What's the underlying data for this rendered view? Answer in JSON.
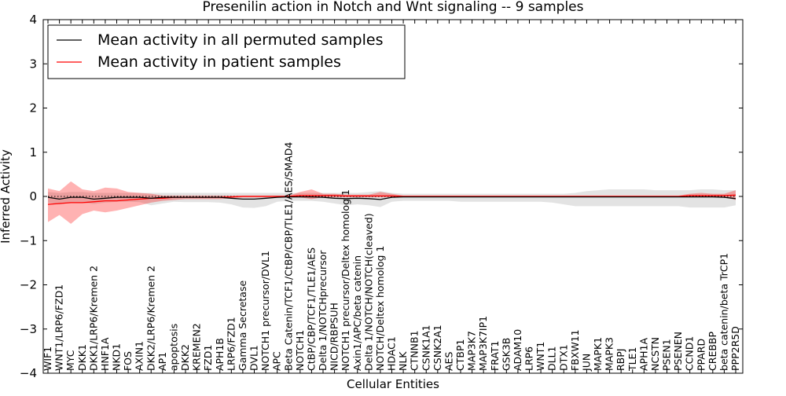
{
  "chart_data": {
    "type": "line",
    "title": "Presenilin action in Notch and Wnt signaling -- 9 samples",
    "xlabel": "Cellular Entities",
    "ylabel": "Inferred Activity",
    "ylim": [
      -4,
      4
    ],
    "yticks": [
      -4,
      -3,
      -2,
      -1,
      0,
      1,
      2,
      3,
      4
    ],
    "ytick_labels": [
      "−4",
      "−3",
      "−2",
      "−1",
      "0",
      "1",
      "2",
      "3",
      "4"
    ],
    "grid": false,
    "legend_position": "top-left",
    "categories": [
      "WIF1",
      "WNT1/LRP6/FZD1",
      "MYC",
      "DKK1",
      "DKK1/LRP6/Kremen 2",
      "HNF1A",
      "NKD1",
      "FOS",
      "AXIN1",
      "DKK2/LRP6/Kremen 2",
      "AP1",
      "apoptosis",
      "DKK2",
      "KREMEN2",
      "FZD1",
      "APH1B",
      "LRP6/FZD1",
      "Gamma Secretase",
      "DVL1",
      "NOTCH1 precursor/DVL1",
      "APC",
      "Beta Catenin/TCF1/CtBP/CBP/TLE1/AES/SMAD4",
      "NOTCH1",
      "CtBP/CBP/TCF1/TLE1/AES",
      "Delta 1/NOTCHprecursor",
      "NICD/RBPSUH",
      "NOTCH1 precursor/Deltex homolog 1",
      "Axin1/APC/beta catenin",
      "Delta 1/NOTCH/NOTCH(cleaved)",
      "NOTCH/Deltex homolog 1",
      "HDAC1",
      "NLK",
      "CTNNB1",
      "CSNK1A1",
      "CSNK2A1",
      "AES",
      "CTBP1",
      "MAP3K7",
      "MAP3K7IP1",
      "FRAT1",
      "GSK3B",
      "ADAM10",
      "LRP6",
      "WNT1",
      "DLL1",
      "DTX1",
      "FBXW11",
      "JUN",
      "MAPK1",
      "MAPK3",
      "RBPJ",
      "TLE1",
      "APH1A",
      "NCSTN",
      "PSEN1",
      "PSENEN",
      "CCND1",
      "PPARD",
      "CREBBP",
      "beta catenin/beta TrCP1",
      "PPP2R5D"
    ],
    "series": [
      {
        "name": "Mean activity in all permuted samples",
        "color": "#000000",
        "values": [
          -0.02,
          -0.06,
          -0.02,
          -0.02,
          -0.06,
          -0.04,
          -0.02,
          -0.02,
          -0.02,
          -0.04,
          -0.02,
          -0.02,
          -0.02,
          -0.02,
          -0.02,
          -0.02,
          -0.04,
          -0.06,
          -0.06,
          -0.04,
          -0.02,
          -0.01,
          -0.01,
          -0.01,
          -0.02,
          -0.04,
          -0.05,
          -0.04,
          -0.05,
          -0.07,
          -0.02,
          -0.01,
          -0.01,
          -0.01,
          -0.01,
          -0.01,
          -0.01,
          -0.01,
          -0.01,
          -0.01,
          -0.01,
          -0.01,
          -0.01,
          -0.01,
          -0.01,
          -0.01,
          -0.01,
          -0.01,
          -0.01,
          -0.01,
          -0.01,
          -0.01,
          -0.01,
          -0.01,
          -0.01,
          -0.01,
          -0.01,
          -0.01,
          -0.01,
          -0.02,
          -0.05
        ],
        "band_low": [
          -0.14,
          -0.18,
          -0.14,
          -0.14,
          -0.17,
          -0.14,
          -0.12,
          -0.12,
          -0.13,
          -0.2,
          -0.16,
          -0.12,
          -0.13,
          -0.13,
          -0.13,
          -0.14,
          -0.18,
          -0.25,
          -0.26,
          -0.22,
          -0.12,
          -0.1,
          -0.1,
          -0.1,
          -0.12,
          -0.16,
          -0.2,
          -0.18,
          -0.2,
          -0.24,
          -0.12,
          -0.1,
          -0.1,
          -0.1,
          -0.1,
          -0.1,
          -0.12,
          -0.12,
          -0.12,
          -0.12,
          -0.12,
          -0.12,
          -0.12,
          -0.12,
          -0.14,
          -0.18,
          -0.22,
          -0.22,
          -0.22,
          -0.22,
          -0.22,
          -0.22,
          -0.22,
          -0.22,
          -0.22,
          -0.22,
          -0.25,
          -0.25,
          -0.25,
          -0.25,
          -0.2
        ],
        "band_high": [
          0.1,
          0.08,
          0.1,
          0.1,
          0.08,
          0.08,
          0.08,
          0.08,
          0.08,
          0.08,
          0.08,
          0.08,
          0.08,
          0.08,
          0.08,
          0.08,
          0.08,
          0.08,
          0.08,
          0.08,
          0.08,
          0.08,
          0.08,
          0.08,
          0.08,
          0.08,
          0.08,
          0.08,
          0.1,
          0.12,
          0.08,
          0.06,
          0.06,
          0.06,
          0.06,
          0.06,
          0.06,
          0.06,
          0.06,
          0.06,
          0.06,
          0.06,
          0.06,
          0.06,
          0.06,
          0.06,
          0.08,
          0.12,
          0.14,
          0.16,
          0.16,
          0.16,
          0.16,
          0.14,
          0.14,
          0.14,
          0.14,
          0.16,
          0.16,
          0.14,
          0.14
        ]
      },
      {
        "name": "Mean activity in patient samples",
        "color": "#ff0000",
        "values": [
          -0.18,
          -0.16,
          -0.14,
          -0.14,
          -0.12,
          -0.1,
          -0.1,
          -0.08,
          -0.06,
          -0.04,
          -0.04,
          -0.02,
          -0.02,
          -0.02,
          -0.02,
          -0.02,
          -0.01,
          0,
          0,
          0,
          0,
          0,
          0.02,
          0.02,
          0.02,
          0.02,
          0.01,
          0.01,
          0.01,
          0.01,
          0.01,
          0,
          0,
          0,
          0,
          0,
          0,
          0,
          0,
          0,
          0,
          0,
          0,
          0,
          0,
          0,
          0,
          0,
          0,
          0,
          0,
          0,
          0,
          0,
          0,
          0,
          0.02,
          0.02,
          0.02,
          0.02,
          0.03
        ],
        "band_low": [
          -0.58,
          -0.42,
          -0.62,
          -0.4,
          -0.32,
          -0.36,
          -0.32,
          -0.26,
          -0.2,
          -0.14,
          -0.1,
          -0.08,
          -0.06,
          -0.06,
          -0.06,
          -0.06,
          -0.04,
          -0.02,
          -0.02,
          -0.02,
          -0.02,
          -0.02,
          -0.02,
          -0.06,
          -0.02,
          -0.02,
          -0.02,
          -0.02,
          -0.02,
          -0.02,
          -0.02,
          -0.01,
          -0.01,
          -0.01,
          -0.01,
          -0.01,
          -0.01,
          -0.01,
          -0.01,
          -0.01,
          -0.01,
          -0.01,
          -0.01,
          -0.01,
          -0.01,
          -0.01,
          -0.01,
          -0.01,
          -0.01,
          -0.01,
          -0.01,
          -0.01,
          -0.01,
          -0.01,
          -0.01,
          -0.01,
          -0.01,
          -0.01,
          -0.01,
          -0.02,
          -0.08
        ],
        "band_high": [
          0.18,
          0.12,
          0.34,
          0.16,
          0.12,
          0.2,
          0.18,
          0.1,
          0.08,
          0.06,
          0.02,
          0.02,
          0.02,
          0.02,
          0.02,
          0.02,
          0.02,
          0.02,
          0.02,
          0.02,
          0.02,
          0.02,
          0.1,
          0.16,
          0.06,
          0.06,
          0.04,
          0.04,
          0.04,
          0.1,
          0.06,
          0.02,
          0.02,
          0.02,
          0.02,
          0.02,
          0.02,
          0.02,
          0.02,
          0.02,
          0.02,
          0.02,
          0.02,
          0.02,
          0.02,
          0.02,
          0.02,
          0.02,
          0.02,
          0.02,
          0.02,
          0.02,
          0.02,
          0.02,
          0.02,
          0.02,
          0.06,
          0.08,
          0.06,
          0.06,
          0.14
        ]
      }
    ],
    "reference_line": {
      "y": 0,
      "style": "dotted"
    }
  }
}
